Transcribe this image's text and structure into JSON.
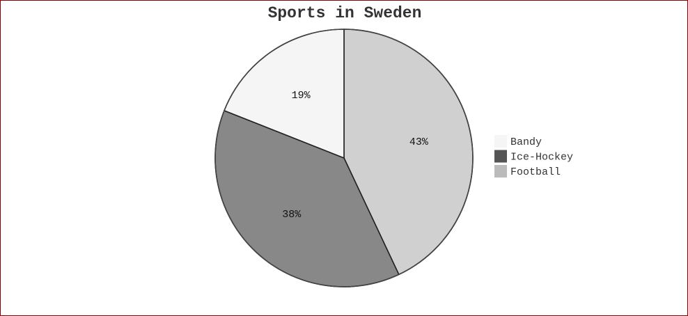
{
  "chart_data": {
    "type": "pie",
    "title": "Sports in Sweden",
    "categories": [
      "Bandy",
      "Ice-Hockey",
      "Football"
    ],
    "values": [
      19,
      38,
      43
    ],
    "slice_labels": [
      "19%",
      "38%",
      "43%"
    ],
    "slice_colors": [
      "#f5f5f5",
      "#888888",
      "#d0d0d0"
    ],
    "legend_colors": [
      "#f5f5f5",
      "#555555",
      "#bbbbbb"
    ],
    "legend": {
      "placement": "right",
      "entries": [
        "Bandy",
        "Ice-Hockey",
        "Football"
      ]
    }
  }
}
